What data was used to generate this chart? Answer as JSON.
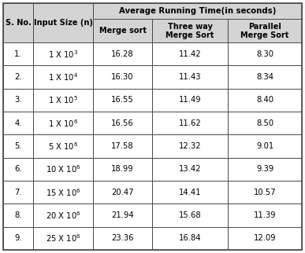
{
  "sno": [
    "1.",
    "2.",
    "3.",
    "4.",
    "5.",
    "6.",
    "7.",
    "8.",
    "9."
  ],
  "input_size_text": [
    "1 X 10",
    "1 X 10",
    "1 X 10",
    "1 X 10",
    "5 X 10",
    "10 X 10",
    "15 X 10",
    "20 X 10",
    "25 X 10"
  ],
  "input_size_exp": [
    "3",
    "4",
    "5",
    "6",
    "6",
    "6",
    "6",
    "6",
    "6"
  ],
  "merge_sort": [
    "16.28",
    "16.30",
    "16.55",
    "16.56",
    "17.58",
    "18.99",
    "20.47",
    "21.94",
    "23.36"
  ],
  "three_way": [
    "11.42",
    "11.43",
    "11.49",
    "11.62",
    "12.32",
    "13.42",
    "14.41",
    "15.68",
    "16.84"
  ],
  "parallel": [
    "8.30",
    "8.34",
    "8.40",
    "8.50",
    "9.01",
    "9.39",
    "10.57",
    "11.39",
    "12.09"
  ],
  "header_span": "Average Running Time(in seconds)",
  "col_h0": "S. No.",
  "col_h1": "Input Size (n)",
  "col_h2": "Merge sort",
  "col_h3_line1": "Three way",
  "col_h3_line2": "Merge Sort",
  "col_h4_line1": "Parallel",
  "col_h4_line2": "Merge Sort",
  "bg_color": "#ffffff",
  "header_bg": "#d4d4d4",
  "text_color": "#000000",
  "border_color": "#4a4a4a",
  "font_size_header": 7.0,
  "font_size_data": 7.2
}
